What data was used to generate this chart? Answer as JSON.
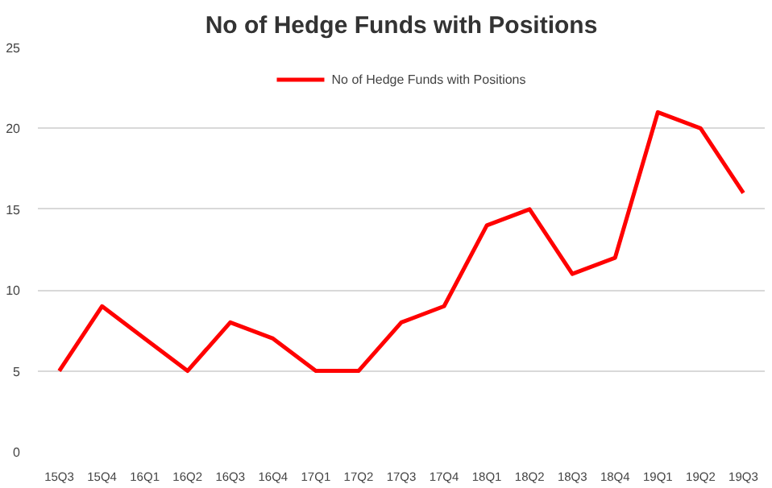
{
  "chart_data": {
    "type": "line",
    "title": "No of Hedge Funds with Positions",
    "categories": [
      "15Q3",
      "15Q4",
      "16Q1",
      "16Q2",
      "16Q3",
      "16Q4",
      "17Q1",
      "17Q2",
      "17Q3",
      "17Q4",
      "18Q1",
      "18Q2",
      "18Q3",
      "18Q4",
      "19Q1",
      "19Q2",
      "19Q3"
    ],
    "series": [
      {
        "name": "No of Hedge Funds with Positions",
        "color": "#ff0000",
        "values": [
          5,
          9,
          7,
          5,
          8,
          7,
          5,
          5,
          8,
          9,
          14,
          15,
          11,
          12,
          21,
          20,
          16
        ]
      }
    ],
    "ylim": [
      0,
      25
    ],
    "yticks": [
      0,
      5,
      10,
      15,
      20,
      25
    ],
    "grid": "y",
    "legend": "top",
    "marker": "none",
    "line_style": "solid"
  }
}
